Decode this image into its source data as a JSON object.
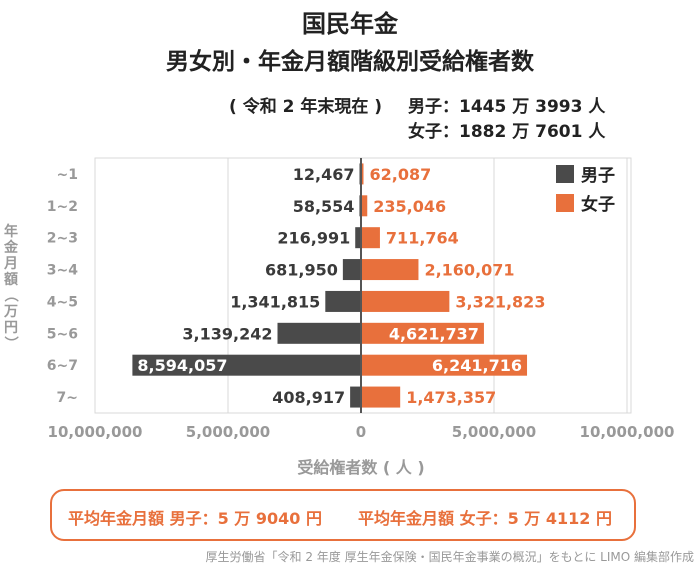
{
  "header": {
    "title": "国民年金",
    "subtitle": "男女別・年金月額階級別受給権者数",
    "as_of": "( 令和 2 年末現在 )",
    "male_total": "男子：1445 万 3993 人",
    "female_total": "女子：1882 万 7601 人"
  },
  "chart_data": {
    "type": "bar",
    "orientation": "horizontal-butterfly",
    "categories": [
      "~1",
      "1~2",
      "2~3",
      "3~4",
      "4~5",
      "5~6",
      "6~7",
      "7~"
    ],
    "series": [
      {
        "name": "男子",
        "color": "#4a4a4a",
        "values": [
          12467,
          58554,
          216991,
          681950,
          1341815,
          3139242,
          8594057,
          408917
        ]
      },
      {
        "name": "女子",
        "color": "#e8703c",
        "values": [
          62087,
          235046,
          711764,
          2160071,
          3321823,
          4621737,
          6241716,
          1473357
        ]
      }
    ],
    "value_labels": {
      "male": [
        "12,467",
        "58,554",
        "216,991",
        "681,950",
        "1,341,815",
        "3,139,242",
        "8,594,057",
        "408,917"
      ],
      "female": [
        "62,087",
        "235,046",
        "711,764",
        "2,160,071",
        "3,321,823",
        "4,621,737",
        "6,241,716",
        "1,473,357"
      ]
    },
    "xlim": [
      -10000000,
      10000000
    ],
    "x_ticks": [
      -10000000,
      -5000000,
      0,
      5000000,
      10000000
    ],
    "x_tick_labels": [
      "10,000,000",
      "5,000,000",
      "0",
      "5,000,000",
      "10,000,000"
    ],
    "xlabel": "受給権者数 ( 人 )",
    "ylabel": "年金月額（万円）",
    "legend": [
      "男子",
      "女子"
    ],
    "legend_position": "top-right"
  },
  "footer": {
    "male_avg": "平均年金月額 男子：5 万 9040 円",
    "female_avg": "平均年金月額 女子：5 万 4112 円",
    "source": "厚生労働省「令和 2 年度 厚生年金保険・国民年金事業の概況」をもとに LIMO 編集部作成"
  }
}
